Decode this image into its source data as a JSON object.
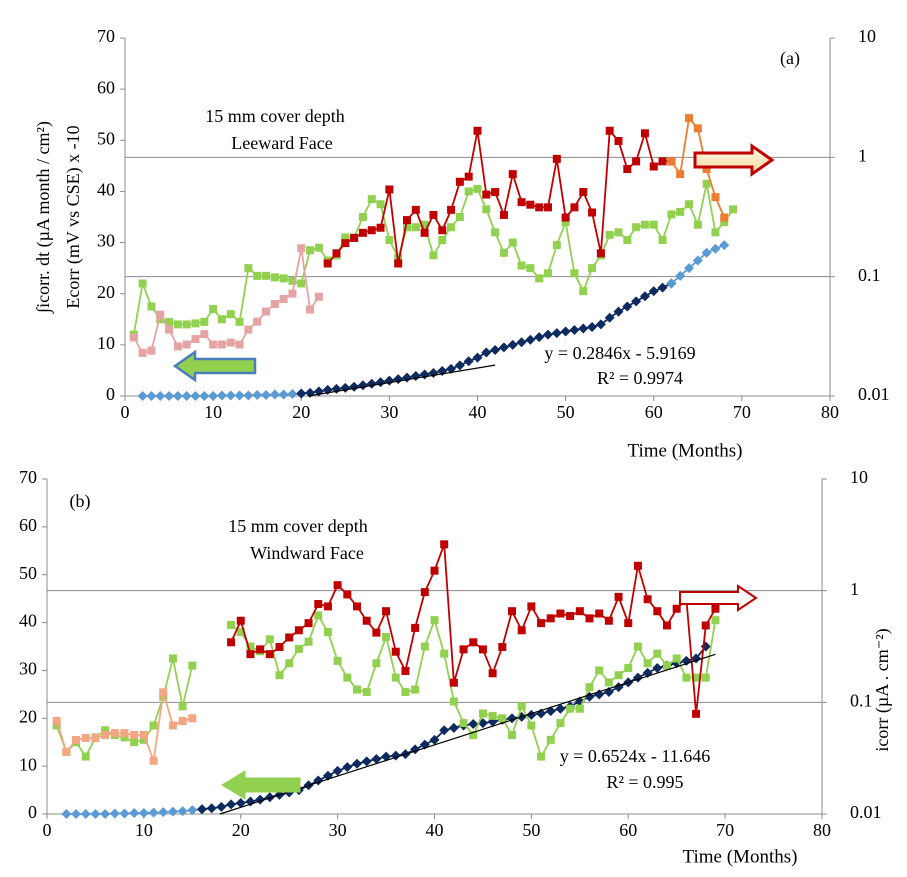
{
  "chart_data": [
    {
      "type": "line",
      "panel_label": "(a)",
      "annotations": [
        "15 mm cover depth",
        "Leeward Face"
      ],
      "xlabel": "Time (Months)",
      "ylabel": [
        "∫icorr. dt  (µA month / cm²)",
        "Ecorr (mV vs CSE) x -10"
      ],
      "xlim": [
        0,
        80
      ],
      "xticks": [
        0,
        10,
        20,
        30,
        40,
        50,
        60,
        70,
        80
      ],
      "ylim": [
        0,
        70
      ],
      "yticks": [
        0,
        10,
        20,
        30,
        40,
        50,
        60,
        70
      ],
      "y2lim": [
        0.01,
        10
      ],
      "y2ticks": [
        0.01,
        0.1,
        1,
        10
      ],
      "y2scale": "log",
      "trendline": {
        "x": [
          20.8,
          42
        ],
        "values": [
          0,
          6.04
        ],
        "color": "#000000",
        "label": [
          "y = 0.2846x - 5.9169",
          "R² = 0.9974"
        ]
      },
      "series": [
        {
          "color": "#5b9bd5",
          "marker": "diamond",
          "x": [
            2,
            3,
            4,
            5,
            6,
            7,
            8,
            9,
            10,
            11,
            12,
            13,
            14,
            15,
            16,
            17,
            18,
            19,
            20
          ],
          "values": [
            0,
            0,
            0,
            0,
            0,
            0,
            0,
            0,
            0,
            0.1,
            0.1,
            0.1,
            0.1,
            0.2,
            0.2,
            0.3,
            0.3,
            0.4,
            0.5
          ]
        },
        {
          "color": "#0f2a5e",
          "marker": "diamond",
          "x": [
            20,
            21,
            22,
            23,
            24,
            25,
            26,
            27,
            28,
            29,
            30,
            31,
            32,
            33,
            34,
            35,
            36,
            37,
            38,
            39,
            40,
            41,
            42,
            43,
            44,
            45,
            46,
            47,
            48,
            49,
            50,
            51,
            52,
            53,
            54,
            55,
            56,
            57,
            58,
            59,
            60,
            61,
            62
          ],
          "values": [
            0.5,
            0.6,
            0.9,
            1.2,
            1.4,
            1.6,
            1.8,
            2.1,
            2.4,
            2.7,
            3.0,
            3.3,
            3.6,
            3.9,
            4.2,
            4.5,
            4.9,
            5.3,
            6.0,
            6.8,
            7.5,
            8.5,
            9.0,
            9.5,
            10.0,
            10.5,
            11.0,
            11.5,
            12.0,
            12.3,
            12.6,
            12.9,
            13.2,
            13.5,
            14.0,
            15.3,
            16.5,
            17.5,
            18.5,
            19.5,
            20.5,
            21.2,
            22.0
          ]
        },
        {
          "color": "#5b9bd5",
          "marker": "diamond",
          "x": [
            62,
            63,
            64,
            65,
            66,
            67,
            68
          ],
          "values": [
            22,
            23.5,
            25,
            26.5,
            28,
            28.8,
            29.5
          ]
        },
        {
          "color": "#92d050",
          "marker": "square",
          "x": [
            1,
            2,
            3,
            4,
            5,
            6,
            7,
            8,
            9,
            10,
            11,
            12,
            13,
            14,
            15,
            16,
            17,
            18,
            19,
            20,
            21,
            22,
            23,
            24,
            25,
            26,
            27,
            28,
            29,
            30,
            31,
            32,
            33,
            34,
            35,
            36,
            37,
            38,
            39,
            40,
            41,
            42,
            43,
            44,
            45,
            46,
            47,
            48,
            49,
            50,
            51,
            52,
            53,
            54,
            55,
            56,
            57,
            58,
            59,
            60,
            61,
            62,
            63,
            64,
            65,
            66,
            67,
            68,
            69
          ],
          "values": [
            12,
            22,
            17.5,
            15,
            14.5,
            14,
            14,
            14.2,
            14.5,
            17,
            15,
            16,
            14.5,
            25,
            23.5,
            23.5,
            23.2,
            23,
            22.5,
            22,
            28.5,
            29,
            26.5,
            27.5,
            31,
            31,
            35,
            38.5,
            37.5,
            30.5,
            27,
            33,
            33,
            33.5,
            27.5,
            30.5,
            33,
            35,
            40,
            40.5,
            36.5,
            32,
            28,
            30,
            25.5,
            25,
            23,
            24,
            29.5,
            34,
            24,
            20.5,
            25,
            27.5,
            31.5,
            32,
            30.5,
            33,
            33.5,
            33.5,
            30.5,
            35.5,
            36,
            37.5,
            33.5,
            41.5,
            32,
            34,
            36.5
          ]
        },
        {
          "color": "#e6a3a3",
          "marker": "square",
          "axis": "y2",
          "x": [
            1,
            2,
            3,
            4,
            5,
            6,
            7,
            8,
            9,
            10,
            11,
            12,
            13,
            14,
            15,
            16,
            17,
            18,
            19,
            20,
            21,
            22
          ],
          "values": [
            0.031,
            0.023,
            0.024,
            0.048,
            0.036,
            0.026,
            0.027,
            0.03,
            0.033,
            0.027,
            0.027,
            0.028,
            0.027,
            0.036,
            0.042,
            0.051,
            0.059,
            0.065,
            0.072,
            0.173,
            0.053,
            0.068
          ]
        },
        {
          "color": "#c00000",
          "marker": "square",
          "axis": "y2",
          "x": [
            23,
            24,
            25,
            26,
            27,
            28,
            29,
            30,
            31,
            32,
            33,
            34,
            35,
            36,
            37,
            38,
            39,
            40,
            41,
            42,
            43,
            44,
            45,
            46,
            47,
            48,
            49,
            50,
            51,
            52,
            53,
            54,
            55,
            56,
            57,
            58,
            59,
            60,
            61,
            62
          ],
          "values": [
            0.129,
            0.157,
            0.191,
            0.211,
            0.233,
            0.245,
            0.257,
            0.538,
            0.129,
            0.298,
            0.363,
            0.233,
            0.329,
            0.245,
            0.363,
            0.624,
            0.689,
            1.67,
            0.488,
            0.512,
            0.329,
            0.723,
            0.421,
            0.401,
            0.381,
            0.381,
            0.971,
            0.313,
            0.381,
            0.512,
            0.345,
            0.157,
            1.67,
            1.37,
            0.798,
            0.925,
            1.59,
            0.838,
            0.925,
            0.925
          ]
        },
        {
          "color": "#ed7d31",
          "marker": "square",
          "axis": "y2",
          "x": [
            62,
            63,
            64,
            65,
            66,
            67,
            68
          ],
          "values": [
            0.925,
            0.723,
            2.13,
            1.75,
            0.798,
            0.464,
            0.313
          ]
        }
      ]
    },
    {
      "type": "line",
      "panel_label": "(b)",
      "annotations": [
        "15 mm cover depth",
        "Windward Face"
      ],
      "xlabel": "Time (Months)",
      "y2label": "icorr (µA . cm⁻²)",
      "xlim": [
        0,
        80
      ],
      "xticks": [
        0,
        10,
        20,
        30,
        40,
        50,
        60,
        70,
        80
      ],
      "ylim": [
        0,
        70
      ],
      "yticks": [
        0,
        10,
        20,
        30,
        40,
        50,
        60,
        70
      ],
      "y2lim": [
        0.01,
        10
      ],
      "y2ticks": [
        0.01,
        0.1,
        1,
        10
      ],
      "y2scale": "log",
      "trendline": {
        "x": [
          17.85,
          69
        ],
        "values": [
          0,
          33.37
        ],
        "color": "#000000",
        "label": [
          "y = 0.6524x - 11.646",
          "R² = 0.995"
        ]
      },
      "series": [
        {
          "color": "#5b9bd5",
          "marker": "diamond",
          "x": [
            2,
            3,
            4,
            5,
            6,
            7,
            8,
            9,
            10,
            11,
            12,
            13,
            14,
            15,
            16
          ],
          "values": [
            0,
            0,
            0,
            0,
            0,
            0.1,
            0.1,
            0.2,
            0.2,
            0.3,
            0.4,
            0.5,
            0.6,
            0.8,
            1.0
          ]
        },
        {
          "color": "#0f2a5e",
          "marker": "diamond",
          "x": [
            16,
            17,
            18,
            19,
            20,
            21,
            22,
            23,
            24,
            25,
            26,
            27,
            28,
            29,
            30,
            31,
            32,
            33,
            34,
            35,
            36,
            37,
            38,
            39,
            40,
            41,
            42,
            43,
            44,
            45,
            46,
            47,
            48,
            49,
            50,
            51,
            52,
            53,
            54,
            55,
            56,
            57,
            58,
            59,
            60,
            61,
            62,
            63,
            64,
            65,
            66,
            67,
            68
          ],
          "values": [
            1.0,
            1.2,
            1.5,
            2,
            2.3,
            2.6,
            3,
            3.5,
            4,
            4.5,
            5,
            6,
            7,
            8,
            9,
            9.8,
            10.5,
            11,
            11.5,
            12,
            12.2,
            12.5,
            13.5,
            14.5,
            15.5,
            17.5,
            18,
            18.5,
            18.8,
            19,
            19.3,
            19.7,
            20,
            20.3,
            20.7,
            21,
            21.5,
            22,
            22.5,
            23.5,
            24.5,
            25,
            25.5,
            26.5,
            27.5,
            28.5,
            29.5,
            30.5,
            31,
            31.5,
            32,
            32.5,
            35
          ]
        },
        {
          "color": "#92d050",
          "marker": "square",
          "x": [
            1,
            2,
            3,
            4,
            5,
            6,
            7,
            8,
            9,
            10,
            11,
            12,
            13,
            14,
            15
          ],
          "values": [
            18.5,
            13,
            15,
            12,
            16,
            17.5,
            16.5,
            16,
            15,
            15.5,
            18.5,
            24.5,
            32.5,
            22.5,
            31
          ]
        },
        {
          "color": "#92d050",
          "marker": "square",
          "x": [
            19,
            20,
            21,
            22,
            23,
            24,
            25,
            26,
            27,
            28,
            29,
            30,
            31,
            32,
            33,
            34,
            35,
            36,
            37,
            38,
            39,
            40,
            41,
            42,
            43,
            44,
            45,
            46,
            47,
            48,
            49,
            50,
            51,
            52,
            53,
            54,
            55,
            56,
            57,
            58,
            59,
            60,
            61,
            62,
            63,
            64,
            65,
            66,
            67,
            68,
            69
          ],
          "values": [
            39.5,
            38,
            35,
            34,
            36.5,
            29,
            31.5,
            34.5,
            36,
            41.5,
            38,
            32,
            28.5,
            26,
            25.5,
            31.5,
            37,
            28.5,
            25.5,
            26,
            35,
            40.5,
            33.5,
            23.5,
            19,
            16.5,
            21,
            20.5,
            20,
            16.5,
            22.5,
            18.5,
            12,
            15.5,
            19,
            22,
            22,
            26.5,
            30,
            27.5,
            29,
            30.5,
            35,
            31.5,
            33.5,
            31,
            32.5,
            28.5,
            28.5,
            28.5,
            40.5
          ]
        },
        {
          "color": "#f4a582",
          "marker": "square",
          "axis": "y2",
          "x": [
            1,
            2,
            3,
            4,
            5,
            6,
            7,
            8,
            9,
            10,
            11,
            12,
            13,
            14,
            15
          ],
          "values": [
            0.068,
            0.036,
            0.046,
            0.048,
            0.048,
            0.051,
            0.053,
            0.053,
            0.051,
            0.051,
            0.03,
            0.123,
            0.062,
            0.068,
            0.072
          ]
        },
        {
          "color": "#c00000",
          "marker": "square",
          "axis": "y2",
          "x": [
            19,
            20,
            21,
            22,
            23,
            24,
            25,
            26,
            27,
            28,
            29,
            30,
            31,
            32,
            33,
            34,
            35,
            36,
            37,
            38,
            39,
            40,
            41,
            42,
            43,
            44,
            45,
            46,
            47,
            48,
            49,
            50,
            51,
            52,
            53,
            54,
            55,
            56,
            57,
            58,
            59,
            60,
            61,
            62,
            63,
            64,
            65,
            66,
            67,
            68,
            69
          ],
          "values": [
            0.345,
            0.538,
            0.27,
            0.298,
            0.27,
            0.313,
            0.381,
            0.442,
            0.512,
            0.759,
            0.723,
            1.12,
            0.925,
            0.723,
            0.538,
            0.421,
            0.655,
            0.284,
            0.191,
            0.464,
            0.971,
            1.51,
            2.6,
            0.15,
            0.298,
            0.345,
            0.298,
            0.182,
            0.313,
            0.655,
            0.442,
            0.723,
            0.512,
            0.565,
            0.624,
            0.593,
            0.655,
            0.565,
            0.624,
            0.538,
            0.88,
            0.512,
            1.67,
            0.838,
            0.655,
            0.488,
            0.689,
            0.838,
            0.0789,
            0.488,
            0.689
          ]
        }
      ]
    }
  ]
}
